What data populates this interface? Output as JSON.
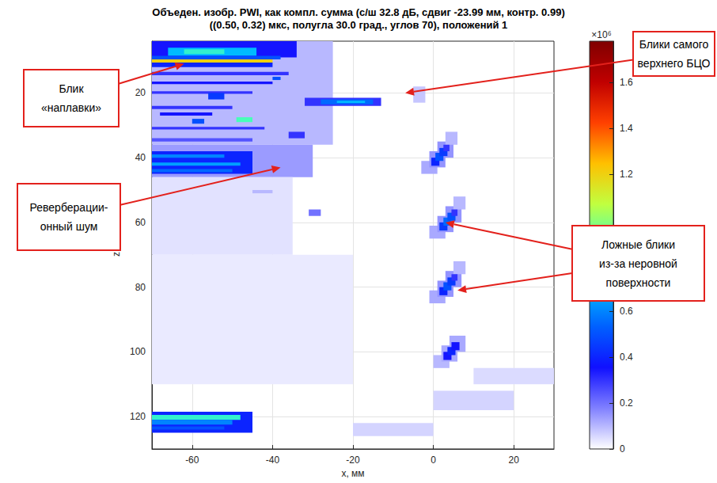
{
  "chart_data": {
    "type": "heatmap",
    "title": "Объеден. изобр. PWI, как компл. сумма (с/ш 32.8 дБ, сдвиг -23.99 мм, контр. 0.99)",
    "subtitle": "((0.50, 0.32) мкс, полугла 30.0 град., углов 70), положений 1",
    "x_label": "x, мм",
    "y_label": "z, мм",
    "xlim": [
      -70,
      30
    ],
    "xticks": [
      -60,
      -40,
      -20,
      0,
      20
    ],
    "ylim": [
      4,
      130
    ],
    "yticks": [
      20,
      40,
      60,
      80,
      100,
      120
    ],
    "grid": true,
    "colorbar": {
      "range": [
        0,
        1.78
      ],
      "ticks": [
        0,
        0.2,
        0.4,
        0.6,
        1.2,
        1.4,
        1.6
      ],
      "multiplier": "×10⁶"
    },
    "cells": [
      [
        -70,
        -25,
        4,
        36,
        0.1
      ],
      [
        -70,
        -30,
        36,
        46,
        0.14
      ],
      [
        -70,
        -34,
        4,
        9,
        0.35
      ],
      [
        -66,
        -44,
        6,
        8.5,
        0.7
      ],
      [
        -62,
        -52,
        6.5,
        8,
        0.85
      ],
      [
        -70,
        -38,
        8.5,
        9.6,
        0.5
      ],
      [
        -70,
        -40,
        9.6,
        10.6,
        1.2
      ],
      [
        -70,
        -40,
        10.6,
        12,
        0.4
      ],
      [
        -70,
        -36,
        13.5,
        14.5,
        0.3
      ],
      [
        -70,
        -40,
        16.5,
        17.3,
        0.35
      ],
      [
        -70,
        -45,
        19.5,
        20.3,
        0.3
      ],
      [
        -70,
        -50,
        24,
        25,
        0.3
      ],
      [
        -68,
        -55,
        26,
        27,
        0.35
      ],
      [
        -70,
        -42,
        30.5,
        31.3,
        0.3
      ],
      [
        -70,
        -45,
        34,
        35,
        0.25
      ],
      [
        -56,
        -52,
        20,
        22,
        0.45
      ],
      [
        -60,
        -57,
        28,
        29.5,
        0.5
      ],
      [
        -49,
        -45,
        27.5,
        29,
        0.9
      ],
      [
        -36,
        -32,
        32,
        34,
        0.3
      ],
      [
        -40,
        -38,
        15,
        16,
        0.5
      ],
      [
        -32,
        -13,
        21.5,
        24,
        0.3
      ],
      [
        -28,
        -15,
        22,
        23.5,
        0.55
      ],
      [
        -24,
        -17,
        22.4,
        23.1,
        0.7
      ],
      [
        -70,
        -45,
        38,
        45,
        0.4
      ],
      [
        -70,
        -52,
        39,
        40,
        0.6
      ],
      [
        -70,
        -48,
        41.5,
        42.5,
        0.65
      ],
      [
        -70,
        -50,
        43.5,
        44.5,
        0.55
      ],
      [
        -70,
        -35,
        46,
        70,
        0.04
      ],
      [
        -70,
        -20,
        70,
        110,
        0.03
      ],
      [
        -31,
        -28,
        56,
        58,
        0.2
      ],
      [
        -45,
        -40,
        50,
        51,
        0.1
      ],
      [
        -70,
        -45,
        118.5,
        125,
        0.4
      ],
      [
        -70,
        -48,
        119.5,
        121,
        0.85
      ],
      [
        -70,
        -50,
        121,
        122.5,
        0.6
      ],
      [
        -70,
        -52,
        123,
        124,
        0.5
      ],
      [
        -20,
        0,
        122,
        126,
        0.06
      ],
      [
        0,
        20,
        112,
        118,
        0.06
      ],
      [
        10,
        30,
        105,
        110,
        0.05
      ],
      [
        -5,
        -2,
        18,
        23,
        0.08
      ],
      [
        -3,
        1,
        41,
        45,
        0.12
      ],
      [
        -1,
        3,
        38,
        43,
        0.15
      ],
      [
        1,
        5,
        35,
        40,
        0.15
      ],
      [
        3,
        6,
        32,
        36,
        0.1
      ],
      [
        -0.5,
        1.5,
        40,
        42.5,
        0.4
      ],
      [
        0.5,
        2.5,
        38.5,
        41,
        0.5
      ],
      [
        1.5,
        3.5,
        37,
        39.5,
        0.45
      ],
      [
        2.5,
        4,
        36,
        38,
        0.3
      ],
      [
        -1,
        3,
        61,
        65,
        0.12
      ],
      [
        1,
        5,
        58,
        63,
        0.15
      ],
      [
        3,
        7,
        55,
        60,
        0.15
      ],
      [
        5,
        8,
        52,
        56,
        0.1
      ],
      [
        1.5,
        3.5,
        60,
        62.5,
        0.45
      ],
      [
        2.5,
        4.5,
        58.5,
        61,
        0.55
      ],
      [
        3.5,
        5.5,
        57,
        59.5,
        0.5
      ],
      [
        4.5,
        6,
        56,
        58,
        0.3
      ],
      [
        -1,
        3,
        81,
        85,
        0.12
      ],
      [
        1,
        5,
        78,
        83,
        0.15
      ],
      [
        3,
        7,
        75,
        80,
        0.15
      ],
      [
        5,
        8,
        72,
        76,
        0.1
      ],
      [
        1.5,
        3.5,
        80,
        82.5,
        0.4
      ],
      [
        2.5,
        4.5,
        78.5,
        81,
        0.5
      ],
      [
        3.5,
        5.5,
        77,
        79.5,
        0.45
      ],
      [
        4.5,
        6,
        76,
        78,
        0.3
      ],
      [
        0,
        4,
        101,
        105,
        0.1
      ],
      [
        2,
        6,
        98,
        103,
        0.12
      ],
      [
        4,
        8,
        95,
        100,
        0.12
      ],
      [
        2.5,
        4.5,
        100,
        102.5,
        0.35
      ],
      [
        3.5,
        5.5,
        98.5,
        101,
        0.4
      ],
      [
        4.5,
        6.5,
        97,
        99.5,
        0.35
      ]
    ],
    "annotations": [
      {
        "text": [
          "Блик",
          "«наплавки»"
        ],
        "points_to": [
          [
            -62,
            11
          ]
        ]
      },
      {
        "text": [
          "Реверберации-",
          "онный шум"
        ],
        "points_to": [
          [
            -38,
            43
          ]
        ]
      },
      {
        "text": [
          "Блики самого",
          "верхнего БЦО"
        ],
        "points_to": [
          [
            -7,
            20
          ]
        ]
      },
      {
        "text": [
          "Ложные блики",
          "из-за неровной",
          "поверхности"
        ],
        "points_to": [
          [
            3,
            60
          ],
          [
            6,
            81
          ]
        ]
      }
    ]
  }
}
